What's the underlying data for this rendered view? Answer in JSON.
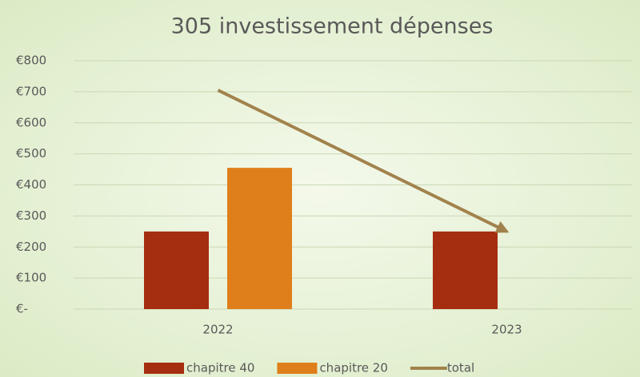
{
  "chart_data": {
    "type": "bar_line",
    "title": "305 investissement dépenses",
    "categories": [
      "2022",
      "2023"
    ],
    "series": [
      {
        "name": "chapitre 40",
        "color": "#a52d10",
        "type": "bar",
        "values": [
          250,
          250
        ]
      },
      {
        "name": "chapitre 20",
        "color": "#df7f1b",
        "type": "bar",
        "values": [
          455,
          null
        ]
      },
      {
        "name": "total",
        "color": "#a2824c",
        "type": "line",
        "values": [
          705,
          250
        ]
      }
    ],
    "ylim": [
      0,
      800
    ],
    "yticks": [
      {
        "value": 0,
        "label": "€-"
      },
      {
        "value": 100,
        "label": "€100"
      },
      {
        "value": 200,
        "label": "€200"
      },
      {
        "value": 300,
        "label": "€300"
      },
      {
        "value": 400,
        "label": "€400"
      },
      {
        "value": 500,
        "label": "€500"
      },
      {
        "value": 600,
        "label": "€600"
      },
      {
        "value": 700,
        "label": "€700"
      },
      {
        "value": 800,
        "label": "€800"
      }
    ],
    "grid": true,
    "legend": "bottom"
  }
}
